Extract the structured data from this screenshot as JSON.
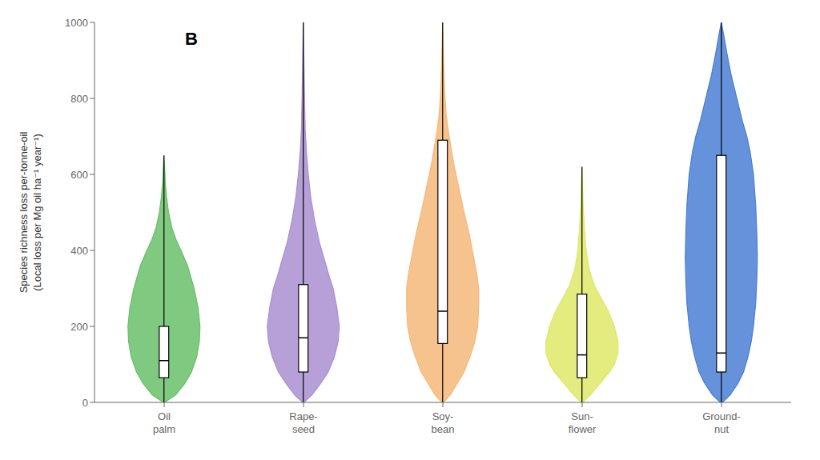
{
  "chart_data": {
    "type": "violin",
    "title": "B",
    "ylabel": "Species richness loss per-tonne-oil\n(Local loss per Mg oil ha⁻¹ year⁻¹)",
    "categories": [
      "Oil\npalm",
      "Rape-\nseed",
      "Soy-\nbean",
      "Sun-\nflower",
      "Ground-\nnut"
    ],
    "ylim": [
      0,
      1000
    ],
    "yticks": [
      0,
      200,
      400,
      600,
      800,
      1000
    ],
    "grid": false,
    "violins": [
      {
        "color": "#6abf6a",
        "y": [
          0,
          20,
          50,
          80,
          120,
          160,
          200,
          250,
          300,
          360,
          400,
          430,
          460,
          500,
          540,
          580,
          620,
          650
        ],
        "width": [
          0.01,
          0.18,
          0.32,
          0.42,
          0.5,
          0.54,
          0.55,
          0.52,
          0.46,
          0.36,
          0.26,
          0.18,
          0.12,
          0.07,
          0.04,
          0.02,
          0.01,
          0.0
        ],
        "q1": 65,
        "median": 110,
        "q3": 200,
        "whisker_lo": 0,
        "whisker_hi": 650
      },
      {
        "color": "#a98fd0",
        "y": [
          0,
          20,
          50,
          80,
          120,
          160,
          200,
          250,
          300,
          330,
          370,
          420,
          480,
          540,
          600,
          660,
          720,
          800,
          900,
          1000
        ],
        "width": [
          0.01,
          0.14,
          0.28,
          0.4,
          0.5,
          0.56,
          0.58,
          0.54,
          0.48,
          0.42,
          0.35,
          0.26,
          0.18,
          0.12,
          0.08,
          0.05,
          0.03,
          0.02,
          0.01,
          0.0
        ],
        "q1": 80,
        "median": 170,
        "q3": 310,
        "whisker_lo": 0,
        "whisker_hi": 1000
      },
      {
        "color": "#f5b87a",
        "y": [
          0,
          20,
          50,
          80,
          120,
          160,
          200,
          250,
          300,
          340,
          380,
          440,
          500,
          560,
          620,
          680,
          720,
          760,
          820,
          900,
          1000
        ],
        "width": [
          0.02,
          0.16,
          0.3,
          0.44,
          0.56,
          0.66,
          0.72,
          0.74,
          0.74,
          0.7,
          0.64,
          0.55,
          0.44,
          0.34,
          0.24,
          0.16,
          0.11,
          0.07,
          0.04,
          0.02,
          0.0
        ],
        "q1": 155,
        "median": 240,
        "q3": 690,
        "whisker_lo": 0,
        "whisker_hi": 1000
      },
      {
        "color": "#dfe868",
        "y": [
          0,
          20,
          50,
          80,
          100,
          130,
          160,
          200,
          240,
          280,
          310,
          350,
          400,
          460,
          520,
          580,
          620
        ],
        "width": [
          0.01,
          0.14,
          0.3,
          0.46,
          0.54,
          0.6,
          0.6,
          0.54,
          0.44,
          0.3,
          0.2,
          0.12,
          0.07,
          0.04,
          0.02,
          0.01,
          0.0
        ],
        "q1": 65,
        "median": 125,
        "q3": 285,
        "whisker_lo": 0,
        "whisker_hi": 620
      },
      {
        "color": "#4a7fd4",
        "y": [
          0,
          20,
          50,
          80,
          120,
          160,
          200,
          260,
          320,
          380,
          450,
          520,
          600,
          660,
          700,
          740,
          800,
          860,
          920,
          970,
          1000
        ],
        "width": [
          0.02,
          0.16,
          0.3,
          0.4,
          0.48,
          0.54,
          0.58,
          0.62,
          0.64,
          0.65,
          0.64,
          0.62,
          0.58,
          0.52,
          0.46,
          0.38,
          0.28,
          0.18,
          0.1,
          0.04,
          0.0
        ],
        "q1": 80,
        "median": 130,
        "q3": 650,
        "whisker_lo": 0,
        "whisker_hi": 1000
      }
    ]
  }
}
